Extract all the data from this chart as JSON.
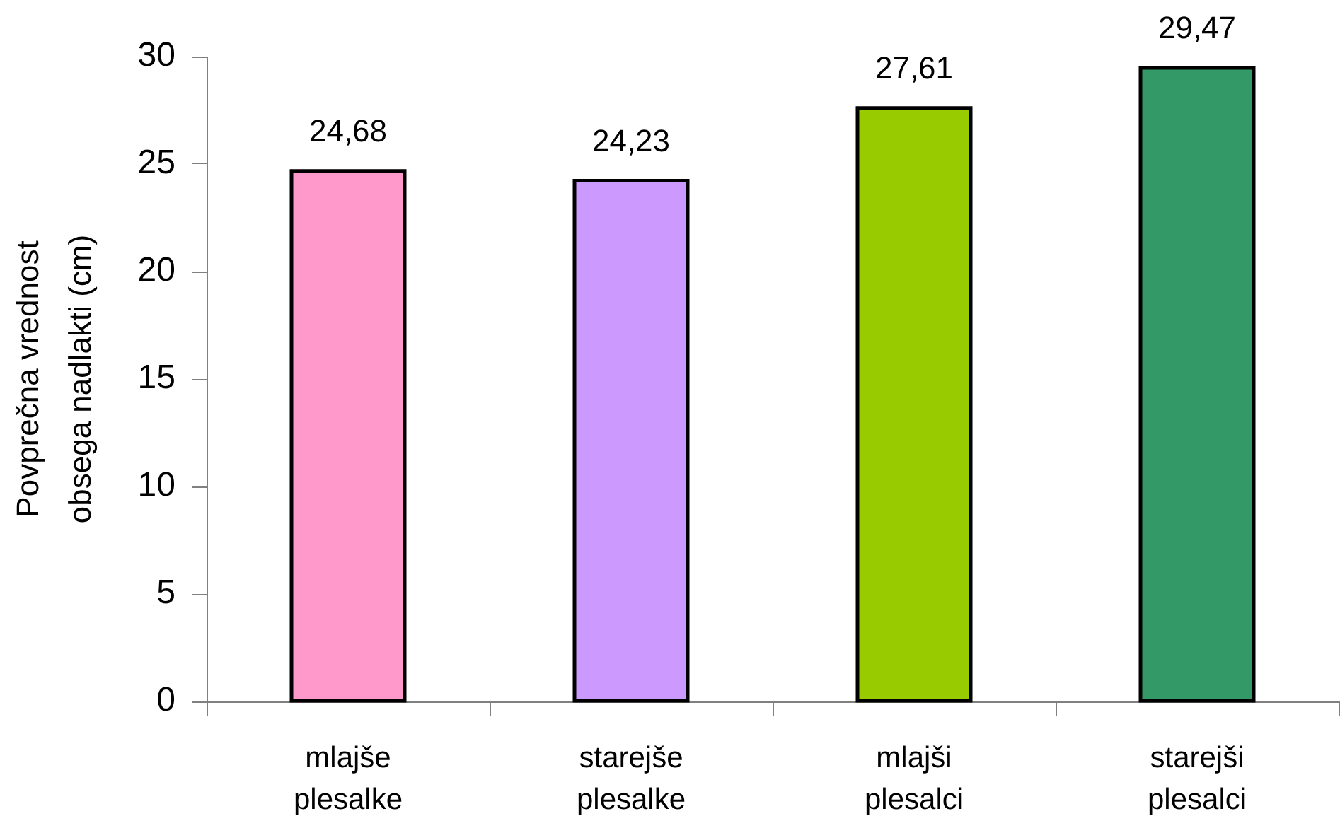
{
  "chart_data": {
    "type": "bar",
    "ylabel": "Povprečna vrednost obsega nadlakti (cm)",
    "categories": [
      "mlajše plesalke",
      "starejše plesalke",
      "mlajši plesalci",
      "starejši plesalci"
    ],
    "values": [
      24.68,
      24.23,
      27.61,
      29.47
    ],
    "colors": [
      "#ff99cc",
      "#cc99ff",
      "#99cc00",
      "#339966"
    ],
    "value_labels": [
      "24,68",
      "24,23",
      "27,61",
      "29,47"
    ],
    "ylim": [
      0,
      30
    ],
    "yticks": [
      0,
      5,
      10,
      15,
      20,
      25,
      30
    ],
    "grid": false,
    "legend": false
  }
}
